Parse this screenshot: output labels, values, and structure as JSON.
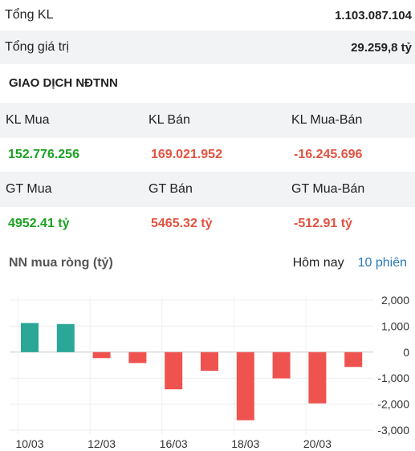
{
  "summary": {
    "total_volume_label": "Tổng KL",
    "total_volume_value": "1.103.087.104",
    "total_value_label": "Tổng giá trị",
    "total_value_value": "29.259,8 tỷ"
  },
  "foreign_trading": {
    "title": "GIAO DỊCH NĐTNN",
    "volume_headers": [
      "KL Mua",
      "KL Bán",
      "KL Mua-Bán"
    ],
    "volume_values": [
      "152.776.256",
      "169.021.952",
      "-16.245.696"
    ],
    "value_headers": [
      "GT Mua",
      "GT Bán",
      "GT Mua-Bán"
    ],
    "value_values": [
      "4952.41 tỷ",
      "5465.32 tỷ",
      "-512.91 tỷ"
    ]
  },
  "chart_header": {
    "title": "NN mua ròng (tỷ)",
    "tab_today": "Hôm nay",
    "tab_10_sessions": "10 phiên"
  },
  "colors": {
    "positive": "#2aa796",
    "negative": "#ef5350",
    "buy_text": "#1aa122",
    "sell_text": "#e25241"
  },
  "chart_data": {
    "type": "bar",
    "title": "NN mua ròng (tỷ)",
    "x_tick_labels": [
      "10/03",
      "12/03",
      "16/03",
      "18/03",
      "20/03"
    ],
    "values": [
      1120,
      1080,
      -230,
      -420,
      -1430,
      -720,
      -2620,
      -1010,
      -1970,
      -570
    ],
    "ylim": [
      -3000,
      2000
    ],
    "y_ticks": [
      2000,
      1000,
      0,
      -1000,
      -2000,
      -3000
    ],
    "y_tick_labels": [
      "2,000",
      "1,000",
      "0",
      "-1,000",
      "-2,000",
      "-3,000"
    ],
    "grid": true
  }
}
